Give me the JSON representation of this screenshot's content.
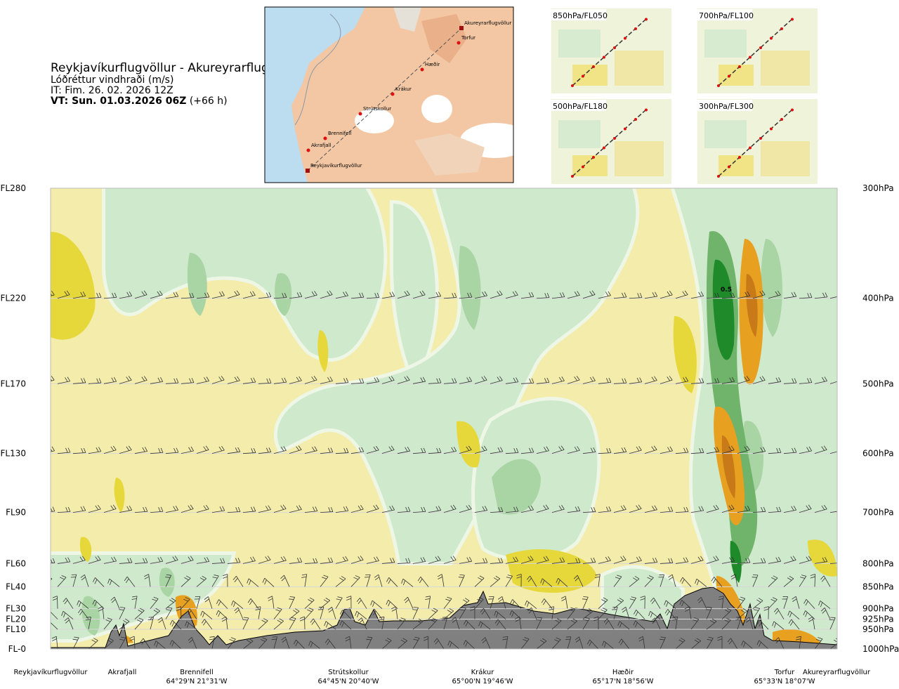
{
  "header": {
    "route_title": "Reykjavíkurflugvöllur - Akureyrarflugvöllur",
    "variable": "Lóðréttur vindhraði (m/s)",
    "issue_time": "IT: Fim. 26. 02. 2026 12Z",
    "valid_time_bold": "VT: Sun. 01.03.2026 06Z",
    "valid_time_offset": "(+66 h)"
  },
  "route_map": {
    "waypoints": [
      "Akureyrarflugvöllur",
      "Torfur",
      "Hæðir",
      "Krákur",
      "Strútskollur",
      "Brennifell",
      "Akrafjall",
      "Reykjavíkurflugvöllur"
    ]
  },
  "level_maps": [
    {
      "label": "850hPa/FL050"
    },
    {
      "label": "700hPa/FL100"
    },
    {
      "label": "500hPa/FL180"
    },
    {
      "label": "300hPa/FL300"
    }
  ],
  "colors": {
    "terrain": "#808080",
    "neutral": "#f4ecaa",
    "sink_light": "#efe08a",
    "sink_mid": "#e6d83a",
    "sink_strong": "#e8a020",
    "sink_max": "#c87a18",
    "rise_faint": "#eef7e6",
    "rise_light": "#cfe9cc",
    "rise_mid": "#a9d4a4",
    "rise_strong": "#6fb46a",
    "rise_max": "#1e8a2a"
  },
  "chart_data": {
    "type": "heatmap",
    "title": "Reykjavíkurflugvöllur - Akureyrarflugvöllur",
    "variable": "Lóðréttur vindhraði (m/s)",
    "left_axis_labels": [
      "FL280",
      "FL220",
      "FL170",
      "FL130",
      "FL90",
      "FL60",
      "FL40",
      "FL30",
      "FL20",
      "FL10",
      "FL-0"
    ],
    "right_axis_labels": [
      "300hPa",
      "400hPa",
      "500hPa",
      "600hPa",
      "700hPa",
      "800hPa",
      "850hPa",
      "900hPa",
      "925hPa",
      "950hPa",
      "1000hPa"
    ],
    "pressure_levels": [
      300,
      400,
      500,
      600,
      700,
      800,
      850,
      900,
      925,
      950,
      1000
    ],
    "bottom_labels": [
      {
        "name": "Reykjavíkurflugvöllur",
        "coord": ""
      },
      {
        "name": "Akrafjall",
        "coord": ""
      },
      {
        "name": "Brennifell",
        "coord": "64°29'N 21°31'W"
      },
      {
        "name": "Strútskollur",
        "coord": "64°45'N 20°40'W"
      },
      {
        "name": "Krákur",
        "coord": "65°00'N 19°46'W"
      },
      {
        "name": "Hæðir",
        "coord": "65°17'N 18°56'W"
      },
      {
        "name": "Torfur",
        "coord": "65°33'N 18°07'W"
      },
      {
        "name": "Akureyrarflugvöllur",
        "coord": ""
      }
    ],
    "annotation": "0.5"
  }
}
